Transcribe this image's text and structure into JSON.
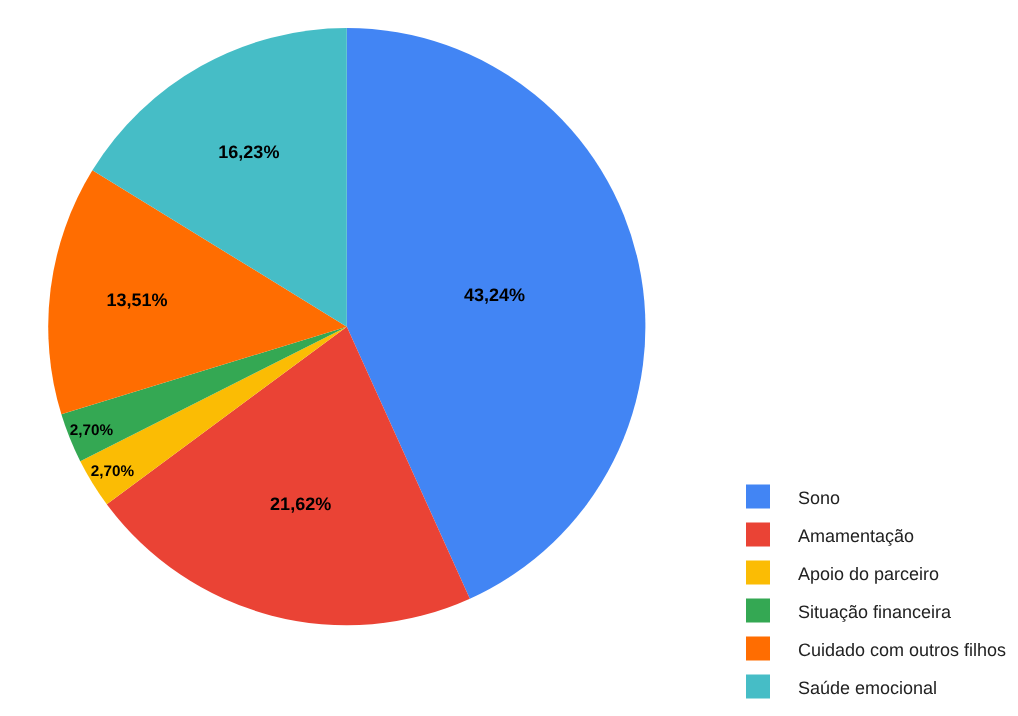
{
  "chart_data": {
    "type": "pie",
    "categories": [
      "Sono",
      "Amamentação",
      "Apoio do parceiro",
      "Situação financeira",
      "Cuidado com outros filhos",
      "Saúde emocional"
    ],
    "values": [
      43.24,
      21.62,
      2.7,
      2.7,
      13.51,
      16.23
    ],
    "value_labels": [
      "43,24%",
      "21,62%",
      "2,70%",
      "2,70%",
      "13,51%",
      "16,23%"
    ],
    "colors": [
      "#4285f4",
      "#ea4335",
      "#fbbc04",
      "#34a853",
      "#ff6d01",
      "#46bdc6"
    ],
    "legend": "bottom right"
  }
}
